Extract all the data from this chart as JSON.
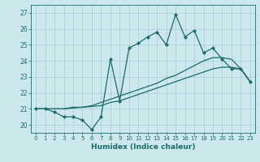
{
  "xlabel": "Humidex (Indice chaleur)",
  "ylabel": "",
  "bg_color": "#cce8ec",
  "grid_color": "#a8cdd4",
  "line_color": "#1a6b6b",
  "xlim": [
    -0.5,
    23.5
  ],
  "ylim": [
    19.5,
    27.5
  ],
  "yticks": [
    20,
    21,
    22,
    23,
    24,
    25,
    26,
    27
  ],
  "xticks": [
    0,
    1,
    2,
    3,
    4,
    5,
    6,
    7,
    8,
    9,
    10,
    11,
    12,
    13,
    14,
    15,
    16,
    17,
    18,
    19,
    20,
    21,
    22,
    23
  ],
  "line1_x": [
    0,
    1,
    2,
    3,
    4,
    5,
    6,
    7,
    8,
    9,
    10,
    11,
    12,
    13,
    14,
    15,
    16,
    17,
    18,
    19,
    20,
    21,
    22,
    23
  ],
  "line1_y": [
    21.0,
    21.0,
    20.8,
    20.5,
    20.5,
    20.3,
    19.7,
    20.5,
    24.1,
    21.5,
    24.8,
    25.1,
    25.5,
    25.8,
    25.0,
    26.9,
    25.5,
    25.9,
    24.5,
    24.8,
    24.1,
    23.5,
    23.5,
    22.7
  ],
  "line2_x": [
    0,
    1,
    2,
    3,
    4,
    5,
    6,
    7,
    8,
    9,
    10,
    11,
    12,
    13,
    14,
    15,
    16,
    17,
    18,
    19,
    20,
    21,
    22,
    23
  ],
  "line2_y": [
    21.0,
    21.0,
    21.0,
    21.0,
    21.1,
    21.1,
    21.2,
    21.4,
    21.6,
    21.8,
    22.0,
    22.2,
    22.4,
    22.6,
    22.9,
    23.1,
    23.4,
    23.7,
    24.0,
    24.2,
    24.2,
    24.1,
    23.5,
    22.7
  ],
  "line3_x": [
    0,
    1,
    2,
    3,
    4,
    5,
    6,
    7,
    8,
    9,
    10,
    11,
    12,
    13,
    14,
    15,
    16,
    17,
    18,
    19,
    20,
    21,
    22,
    23
  ],
  "line3_y": [
    21.0,
    21.0,
    21.0,
    21.0,
    21.05,
    21.1,
    21.15,
    21.2,
    21.4,
    21.5,
    21.7,
    21.9,
    22.1,
    22.3,
    22.5,
    22.7,
    22.9,
    23.1,
    23.3,
    23.5,
    23.6,
    23.6,
    23.5,
    22.7
  ]
}
